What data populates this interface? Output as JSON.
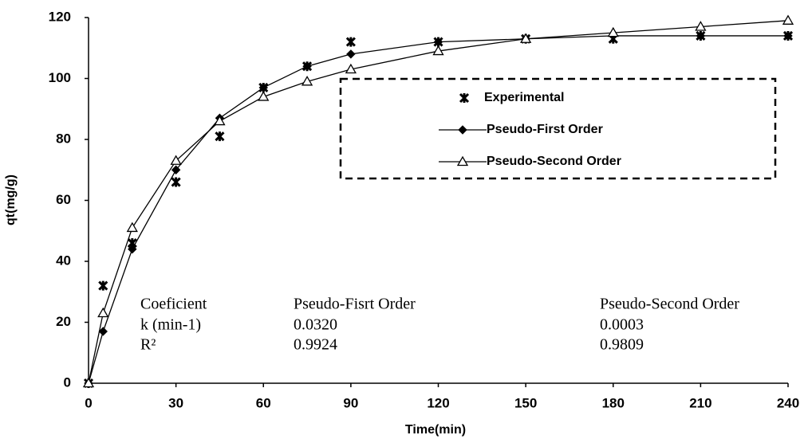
{
  "chart_data": {
    "type": "line",
    "xlabel": "Time(min)",
    "ylabel": "qt(mg/g)",
    "x": [
      0,
      5,
      15,
      30,
      45,
      60,
      75,
      90,
      120,
      150,
      180,
      210,
      240
    ],
    "series": [
      {
        "name": "Experimental",
        "color": "#000000",
        "marker": "x",
        "line": false,
        "values": [
          0,
          32,
          46,
          66,
          81,
          97,
          104,
          112,
          112,
          113,
          113,
          114,
          114
        ]
      },
      {
        "name": "Pseudo-First Order",
        "color": "#000000",
        "marker": "diamond",
        "line": true,
        "values": [
          0,
          17,
          44,
          70,
          87,
          97,
          104,
          108,
          112,
          113,
          114,
          114,
          114
        ]
      },
      {
        "name": "Pseudo-Second Order",
        "color": "#000000",
        "marker": "triangle",
        "line": true,
        "values": [
          0,
          23,
          51,
          73,
          86,
          94,
          99,
          103,
          109,
          113,
          115,
          117,
          119
        ]
      }
    ],
    "xlim": [
      0,
      240
    ],
    "xticks": [
      0,
      30,
      60,
      90,
      120,
      150,
      180,
      210,
      240
    ],
    "ylim": [
      0,
      120
    ],
    "yticks": [
      0,
      20,
      40,
      60,
      80,
      100,
      120
    ],
    "grid": false,
    "legend": "upper right",
    "table": {
      "rows": [
        [
          "Coeficient",
          "Pseudo-Fisrt Order",
          "Pseudo-Second Order"
        ],
        [
          "k (min-1)",
          "0.0320",
          "0.0003"
        ],
        [
          "R²",
          "0.9924",
          "0.9809"
        ]
      ]
    }
  }
}
